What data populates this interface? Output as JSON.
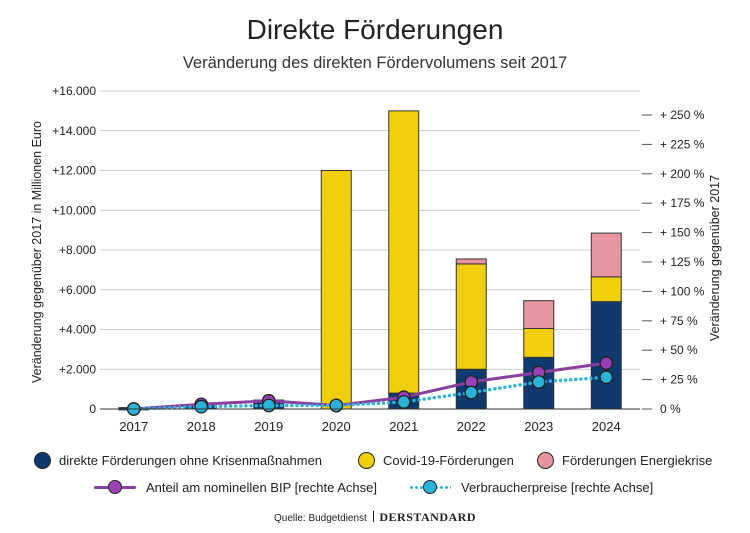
{
  "title": "Direkte Förderungen",
  "subtitle": "Veränderung des direkten Fördervolumens seit 2017",
  "source_label": "Quelle: Budgetdienst",
  "brand": "DERSTANDARD",
  "colors": {
    "basis": "#0e3a6e",
    "covid": "#f0cf0a",
    "energie": "#e895a0",
    "bip": "#8b3fa0",
    "bip_marker": "#9a3fb5",
    "vpi": "#2bb2d8",
    "grid": "#bbbbbb"
  },
  "legend": {
    "basis": "direkte Förderungen ohne Krisenmaßnahmen",
    "covid": "Covid-19-Förderungen",
    "energie": "Förderungen Energiekrise",
    "bip": "Anteil am nominellen BIP [rechte Achse]",
    "vpi": "Verbraucherpreise [rechte Achse]"
  },
  "chart_data": {
    "type": "bar",
    "stacked": true,
    "title": "Direkte Förderungen",
    "subtitle": "Veränderung des direkten Fördervolumens seit 2017",
    "categories": [
      "2017",
      "2018",
      "2019",
      "2020",
      "2021",
      "2022",
      "2023",
      "2024"
    ],
    "ylabel": "Veränderung gegenüber 2017 in Millionen Euro",
    "ylabel_right": "Veränderung gegenüber 2017",
    "ylim": [
      0,
      16000
    ],
    "ylim_right": [
      0,
      275
    ],
    "yticks": [
      0,
      2000,
      4000,
      6000,
      8000,
      10000,
      12000,
      14000,
      16000
    ],
    "yticks_labels": [
      "0",
      "+2.000",
      "+4.000",
      "+6.000",
      "+8.000",
      "+10.000",
      "+12.000",
      "+14.000",
      "+16.000"
    ],
    "yticks_right": [
      0,
      25,
      50,
      75,
      100,
      125,
      150,
      175,
      200,
      225,
      250
    ],
    "yticks_right_labels": [
      "0 %",
      "+ 25 %",
      "+ 50 %",
      "+ 75 %",
      "+ 100 %",
      "+ 125 %",
      "+ 150 %",
      "+ 175 %",
      "+ 200 %",
      "+ 225 %",
      "+ 250 %"
    ],
    "grid": true,
    "legend_position": "bottom",
    "series": [
      {
        "name": "direkte Förderungen ohne Krisenmaßnahmen",
        "axis": "left",
        "kind": "bar",
        "values": [
          0,
          200,
          450,
          0,
          800,
          2000,
          2600,
          5400
        ]
      },
      {
        "name": "Covid-19-Förderungen",
        "axis": "left",
        "kind": "bar",
        "values": [
          0,
          0,
          0,
          12000,
          14200,
          5300,
          1450,
          1250
        ]
      },
      {
        "name": "Förderungen Energiekrise",
        "axis": "left",
        "kind": "bar",
        "values": [
          0,
          0,
          0,
          0,
          0,
          250,
          1400,
          2200
        ]
      },
      {
        "name": "Anteil am nominellen BIP [rechte Achse]",
        "axis": "right",
        "kind": "line",
        "values": [
          0,
          4,
          7,
          3,
          10,
          23,
          31,
          39
        ]
      },
      {
        "name": "Verbraucherpreise [rechte Achse]",
        "axis": "right",
        "kind": "line",
        "style": "dotted",
        "values": [
          0,
          2,
          3,
          3,
          6,
          14,
          23,
          27
        ]
      }
    ]
  }
}
